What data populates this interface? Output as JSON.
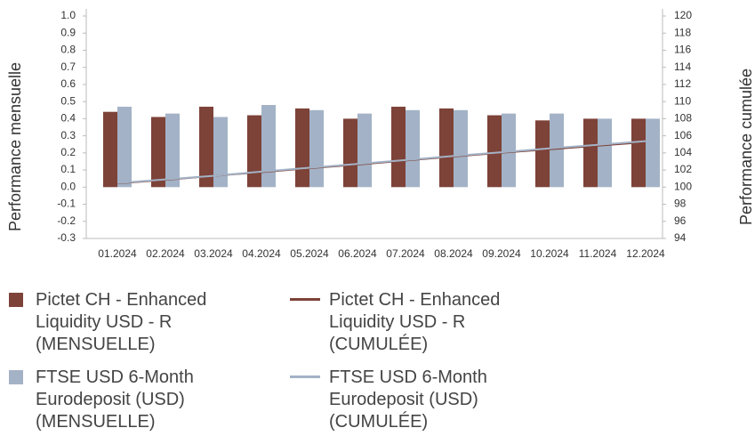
{
  "chart_data": {
    "type": "bar",
    "y_label": "Performance mensuelle",
    "y2_label": "Performance cumulée",
    "categories": [
      "01.2024",
      "02.2024",
      "03.2024",
      "04.2024",
      "05.2024",
      "06.2024",
      "07.2024",
      "08.2024",
      "09.2024",
      "10.2024",
      "11.2024",
      "12.2024"
    ],
    "series": [
      {
        "name": "Pictet CH - Enhanced Liquidity USD - R (MENSUELLE)",
        "type": "bar",
        "color": "#7d4238",
        "values": [
          0.44,
          0.41,
          0.47,
          0.42,
          0.46,
          0.4,
          0.47,
          0.46,
          0.42,
          0.39,
          0.4,
          0.4
        ]
      },
      {
        "name": "FTSE USD 6-Month Eurodeposit (USD) (MENSUELLE)",
        "type": "bar",
        "color": "#a3b2c6",
        "values": [
          0.47,
          0.43,
          0.41,
          0.48,
          0.45,
          0.43,
          0.45,
          0.45,
          0.43,
          0.43,
          0.4,
          0.4
        ]
      },
      {
        "name": "Pictet CH - Enhanced Liquidity USD - R (CUMULÉE)",
        "type": "line",
        "axis": "y2",
        "color": "#7d4238",
        "values": [
          100.44,
          100.85,
          101.32,
          101.75,
          102.22,
          102.63,
          103.11,
          103.58,
          104.02,
          104.42,
          104.84,
          105.26
        ]
      },
      {
        "name": "FTSE USD 6-Month Eurodeposit (USD) (CUMULÉE)",
        "type": "line",
        "axis": "y2",
        "color": "#a3b2c6",
        "values": [
          100.47,
          100.9,
          101.32,
          101.81,
          102.27,
          102.71,
          103.17,
          103.64,
          104.08,
          104.53,
          104.95,
          105.37
        ]
      }
    ],
    "ylim": [
      -0.3,
      1.0
    ],
    "yticks": [
      {
        "value": -0.3,
        "label": "-0.3"
      },
      {
        "value": -0.2,
        "label": "-0.2"
      },
      {
        "value": -0.1,
        "label": "-0.1"
      },
      {
        "value": 0,
        "label": "0.0"
      },
      {
        "value": 0.1,
        "label": "0.1"
      },
      {
        "value": 0.2,
        "label": "0.2"
      },
      {
        "value": 0.3,
        "label": "0.3"
      },
      {
        "value": 0.4,
        "label": "0.4"
      },
      {
        "value": 0.5,
        "label": "0.5"
      },
      {
        "value": 0.6,
        "label": "0.6"
      },
      {
        "value": 0.7,
        "label": "0.7"
      },
      {
        "value": 0.8,
        "label": "0.8"
      },
      {
        "value": 0.9,
        "label": "0.9"
      },
      {
        "value": 1.0,
        "label": "1.0"
      }
    ],
    "y2lim": [
      94,
      120
    ],
    "y2ticks": [
      94,
      96,
      98,
      100,
      102,
      104,
      106,
      108,
      110,
      112,
      114,
      116,
      118,
      120
    ],
    "grid": false
  }
}
